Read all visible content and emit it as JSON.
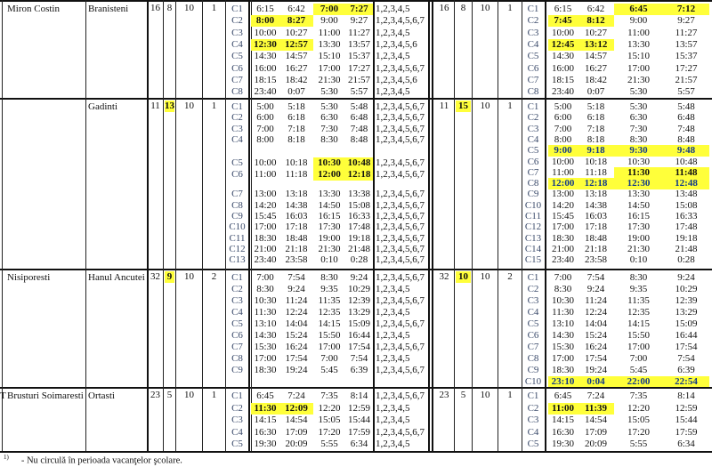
{
  "highlight_color": "#ffff3a",
  "sections": [
    {
      "lead": "",
      "from": "Miron Costin",
      "to": "Branisteni",
      "left": {
        "nums": [
          "16",
          "8",
          "10",
          "1"
        ],
        "num_highlight": [],
        "rows": [
          {
            "c": "C1",
            "t": [
              "6:15",
              "6:42",
              "7:00",
              "7:27"
            ],
            "days": "1,2,3,4,5",
            "hl": [
              2,
              3
            ]
          },
          {
            "c": "C2",
            "t": [
              "8:00",
              "8:27",
              "9:00",
              "9:27"
            ],
            "days": "1,2,3,4,5,6,7",
            "hl": [
              0,
              1
            ]
          },
          {
            "c": "C3",
            "t": [
              "10:00",
              "10:27",
              "11:00",
              "11:27"
            ],
            "days": "1,2,3,4,5",
            "hl": []
          },
          {
            "c": "C4",
            "t": [
              "12:30",
              "12:57",
              "13:30",
              "13:57"
            ],
            "days": "1,2,3,4,5,6",
            "hl": [
              0,
              1
            ]
          },
          {
            "c": "C5",
            "t": [
              "14:30",
              "14:57",
              "15:10",
              "15:37"
            ],
            "days": "1,2,3,4,5",
            "hl": []
          },
          {
            "c": "C6",
            "t": [
              "16:00",
              "16:27",
              "17:00",
              "17:27"
            ],
            "days": "1,2,3,4,5,6,7",
            "hl": []
          },
          {
            "c": "C7",
            "t": [
              "18:15",
              "18:42",
              "21:30",
              "21:57"
            ],
            "days": "1,2,3,4,5,6",
            "hl": []
          },
          {
            "c": "C8",
            "t": [
              "23:40",
              "0:07",
              "5:30",
              "5:57"
            ],
            "days": "1,2,3,4,5",
            "hl": []
          }
        ]
      },
      "right": {
        "nums": [
          "16",
          "8",
          "10",
          "1"
        ],
        "num_highlight": [],
        "rows": [
          {
            "c": "C1",
            "t": [
              "6:15",
              "6:42",
              "6:45",
              "7:12"
            ],
            "hl": [
              2,
              3
            ]
          },
          {
            "c": "C2",
            "t": [
              "7:45",
              "8:12",
              "9:00",
              "9:27"
            ],
            "hl": [
              0,
              1
            ]
          },
          {
            "c": "C3",
            "t": [
              "10:00",
              "10:27",
              "11:00",
              "11:27"
            ],
            "hl": []
          },
          {
            "c": "C4",
            "t": [
              "12:45",
              "13:12",
              "13:30",
              "13:57"
            ],
            "hl": [
              0,
              1
            ]
          },
          {
            "c": "C5",
            "t": [
              "14:30",
              "14:57",
              "15:10",
              "15:37"
            ],
            "hl": []
          },
          {
            "c": "C6",
            "t": [
              "16:00",
              "16:27",
              "17:00",
              "17:27"
            ],
            "hl": []
          },
          {
            "c": "C7",
            "t": [
              "18:15",
              "18:42",
              "21:30",
              "21:57"
            ],
            "hl": []
          },
          {
            "c": "C8",
            "t": [
              "23:40",
              "0:07",
              "5:30",
              "5:57"
            ],
            "hl": []
          }
        ]
      }
    },
    {
      "lead": "",
      "from": "",
      "to": "Gadinti",
      "left": {
        "nums": [
          "11",
          "13",
          "10",
          "1"
        ],
        "num_highlight": [
          1
        ],
        "rows": [
          {
            "c": "C1",
            "t": [
              "5:00",
              "5:18",
              "5:30",
              "5:48"
            ],
            "days": "1,2,3,4,5,6,7",
            "hl": []
          },
          {
            "c": "C2",
            "t": [
              "6:00",
              "6:18",
              "6:30",
              "6:48"
            ],
            "days": "1,2,3,4,5,6,7",
            "hl": []
          },
          {
            "c": "C3",
            "t": [
              "7:00",
              "7:18",
              "7:30",
              "7:48"
            ],
            "days": "1,2,3,4,5,6,7",
            "hl": []
          },
          {
            "c": "C4",
            "t": [
              "8:00",
              "8:18",
              "8:30",
              "8:48"
            ],
            "days": "1,2,3,4,5,6,7",
            "hl": []
          },
          {
            "c": "C5",
            "t": [
              "10:00",
              "10:18",
              "10:30",
              "10:48"
            ],
            "days": "1,2,3,4,5,6,7",
            "hl": [
              2,
              3
            ]
          },
          {
            "c": "C6",
            "t": [
              "11:00",
              "11:18",
              "12:00",
              "12:18"
            ],
            "days": "1,2,3,4,5,6,7",
            "hl": [
              2,
              3
            ]
          },
          {
            "c": "C7",
            "t": [
              "13:00",
              "13:18",
              "13:30",
              "13:38"
            ],
            "days": "1,2,3,4,5,6,7",
            "hl": []
          },
          {
            "c": "C8",
            "t": [
              "14:20",
              "14:38",
              "14:50",
              "15:08"
            ],
            "days": "1,2,3,4,5,6,7",
            "hl": []
          },
          {
            "c": "C9",
            "t": [
              "15:45",
              "16:03",
              "16:15",
              "16:33"
            ],
            "days": "1,2,3,4,5,6,7",
            "hl": []
          },
          {
            "c": "C10",
            "t": [
              "17:00",
              "17:18",
              "17:30",
              "17:48"
            ],
            "days": "1,2,3,4,5,6,7",
            "hl": []
          },
          {
            "c": "C11",
            "t": [
              "18:30",
              "18:48",
              "19:00",
              "19:18"
            ],
            "days": "1,2,3,4,5,6,7",
            "hl": []
          },
          {
            "c": "C12",
            "t": [
              "21:00",
              "21:18",
              "21:30",
              "21:48"
            ],
            "days": "1,2,3,4,5,6,7",
            "hl": []
          },
          {
            "c": "C13",
            "t": [
              "23:40",
              "23:58",
              "0:10",
              "0:28"
            ],
            "days": "1,2,3,4,5,6,7",
            "hl": []
          }
        ]
      },
      "right": {
        "nums": [
          "11",
          "15",
          "10",
          "1"
        ],
        "num_highlight": [
          1
        ],
        "rows": [
          {
            "c": "C1",
            "t": [
              "5:00",
              "5:18",
              "5:30",
              "5:48"
            ],
            "hl": []
          },
          {
            "c": "C2",
            "t": [
              "6:00",
              "6:18",
              "6:30",
              "6:48"
            ],
            "hl": []
          },
          {
            "c": "C3",
            "t": [
              "7:00",
              "7:18",
              "7:30",
              "7:48"
            ],
            "hl": []
          },
          {
            "c": "C4",
            "t": [
              "8:00",
              "8:18",
              "8:30",
              "8:48"
            ],
            "hl": []
          },
          {
            "c": "C5",
            "t": [
              "9:00",
              "9:18",
              "9:30",
              "9:48"
            ],
            "hl": [
              0,
              1,
              2,
              3
            ],
            "blue": true
          },
          {
            "c": "C6",
            "t": [
              "10:00",
              "10:18",
              "10:30",
              "10:48"
            ],
            "hl": []
          },
          {
            "c": "C7",
            "t": [
              "11:00",
              "11:18",
              "11:30",
              "11:48"
            ],
            "hl": [
              2,
              3
            ]
          },
          {
            "c": "C8",
            "t": [
              "12:00",
              "12:18",
              "12:30",
              "12:48"
            ],
            "hl": [
              0,
              1,
              2,
              3
            ],
            "blue": true
          },
          {
            "c": "C9",
            "t": [
              "13:00",
              "13:18",
              "13:30",
              "13:48"
            ],
            "hl": []
          },
          {
            "c": "C10",
            "t": [
              "14:20",
              "14:38",
              "14:50",
              "15:08"
            ],
            "hl": []
          },
          {
            "c": "C11",
            "t": [
              "15:45",
              "16:03",
              "16:15",
              "16:33"
            ],
            "hl": []
          },
          {
            "c": "C12",
            "t": [
              "17:00",
              "17:18",
              "17:30",
              "17:48"
            ],
            "hl": []
          },
          {
            "c": "C13",
            "t": [
              "18:30",
              "18:48",
              "19:00",
              "19:18"
            ],
            "hl": []
          },
          {
            "c": "C14",
            "t": [
              "21:00",
              "21:18",
              "21:30",
              "21:48"
            ],
            "hl": []
          },
          {
            "c": "C15",
            "t": [
              "23:40",
              "23:58",
              "0:10",
              "0:28"
            ],
            "hl": []
          }
        ]
      }
    },
    {
      "lead": "",
      "from": "Nisiporesti",
      "to": "Hanul Ancutei",
      "left": {
        "nums": [
          "32",
          "9",
          "10",
          "2"
        ],
        "num_highlight": [
          1
        ],
        "rows": [
          {
            "c": "C1",
            "t": [
              "7:00",
              "7:54",
              "8:30",
              "9:24"
            ],
            "days": "1,2,3,4,5,6,7",
            "hl": []
          },
          {
            "c": "C2",
            "t": [
              "8:30",
              "9:24",
              "9:35",
              "10:29"
            ],
            "days": "1,2,3,4,5",
            "hl": []
          },
          {
            "c": "C3",
            "t": [
              "10:30",
              "11:24",
              "11:35",
              "12:39"
            ],
            "days": "1,2,3,4,5,6,7",
            "hl": []
          },
          {
            "c": "C4",
            "t": [
              "11:30",
              "12:24",
              "12:35",
              "13:29"
            ],
            "days": "1,2,3,4,5",
            "hl": []
          },
          {
            "c": "C5",
            "t": [
              "13:10",
              "14:04",
              "14:15",
              "15:09"
            ],
            "days": "1,2,3,4,5,6,7",
            "hl": []
          },
          {
            "c": "C6",
            "t": [
              "14:30",
              "15:24",
              "15:50",
              "16:44"
            ],
            "days": "1,2,3,4,5",
            "hl": []
          },
          {
            "c": "C7",
            "t": [
              "15:30",
              "16:24",
              "17:00",
              "17:54"
            ],
            "days": "1,2,3,4,5,6,7",
            "hl": []
          },
          {
            "c": "C8",
            "t": [
              "17:00",
              "17:54",
              "7:00",
              "7:54"
            ],
            "days": "1,2,3,4,5",
            "hl": []
          },
          {
            "c": "C9",
            "t": [
              "18:30",
              "19:24",
              "5:45",
              "6:39"
            ],
            "days": "1,2,3,4,5,6,7",
            "hl": []
          }
        ]
      },
      "right": {
        "nums": [
          "32",
          "10",
          "10",
          "2"
        ],
        "num_highlight": [
          1
        ],
        "rows": [
          {
            "c": "C1",
            "t": [
              "7:00",
              "7:54",
              "8:30",
              "9:24"
            ],
            "hl": []
          },
          {
            "c": "C2",
            "t": [
              "8:30",
              "9:24",
              "9:35",
              "10:29"
            ],
            "hl": []
          },
          {
            "c": "C3",
            "t": [
              "10:30",
              "11:24",
              "11:35",
              "12:39"
            ],
            "hl": []
          },
          {
            "c": "C4",
            "t": [
              "11:30",
              "12:24",
              "12:35",
              "13:29"
            ],
            "hl": []
          },
          {
            "c": "C5",
            "t": [
              "13:10",
              "14:04",
              "14:15",
              "15:09"
            ],
            "hl": []
          },
          {
            "c": "C6",
            "t": [
              "14:30",
              "15:24",
              "15:50",
              "16:44"
            ],
            "hl": []
          },
          {
            "c": "C7",
            "t": [
              "15:30",
              "16:24",
              "17:00",
              "17:54"
            ],
            "hl": []
          },
          {
            "c": "C8",
            "t": [
              "17:00",
              "17:54",
              "7:00",
              "7:54"
            ],
            "hl": []
          },
          {
            "c": "C9",
            "t": [
              "18:30",
              "19:24",
              "5:45",
              "6:39"
            ],
            "hl": []
          },
          {
            "c": "C10",
            "t": [
              "23:10",
              "0:04",
              "22:00",
              "22:54"
            ],
            "hl": [
              0,
              1,
              2,
              3
            ],
            "blue": true
          }
        ]
      }
    },
    {
      "lead": "T",
      "from": "Brusturi Soimaresti",
      "to": "Ortasti",
      "left": {
        "nums": [
          "23",
          "5",
          "10",
          "1"
        ],
        "num_highlight": [],
        "rows": [
          {
            "c": "C1",
            "t": [
              "6:45",
              "7:24",
              "7:35",
              "8:14"
            ],
            "days": "1,2,3,4,5,6,7",
            "hl": []
          },
          {
            "c": "C2",
            "t": [
              "11:30",
              "12:09",
              "12:20",
              "12:59"
            ],
            "days": "1,2,3,4,5",
            "hl": [
              0,
              1
            ]
          },
          {
            "c": "C3",
            "t": [
              "14:15",
              "14:54",
              "15:05",
              "15:44"
            ],
            "days": "1,2,3,4,5",
            "hl": []
          },
          {
            "c": "C4",
            "t": [
              "16:30",
              "17:09",
              "17:20",
              "17:59"
            ],
            "days": "1,2,3,4,5,6,7",
            "hl": []
          },
          {
            "c": "C5",
            "t": [
              "19:30",
              "20:09",
              "5:55",
              "6:34"
            ],
            "days": "1,2,3,4,5",
            "hl": []
          }
        ]
      },
      "right": {
        "nums": [
          "23",
          "5",
          "10",
          "1"
        ],
        "num_highlight": [],
        "rows": [
          {
            "c": "C1",
            "t": [
              "6:45",
              "7:24",
              "7:35",
              "8:14"
            ],
            "hl": []
          },
          {
            "c": "C2",
            "t": [
              "11:00",
              "11:39",
              "12:20",
              "12:59"
            ],
            "hl": [
              0,
              1
            ]
          },
          {
            "c": "C3",
            "t": [
              "14:15",
              "14:54",
              "15:05",
              "15:44"
            ],
            "hl": []
          },
          {
            "c": "C4",
            "t": [
              "16:30",
              "17:09",
              "17:20",
              "17:59"
            ],
            "hl": []
          },
          {
            "c": "C5",
            "t": [
              "19:30",
              "20:09",
              "5:55",
              "6:34"
            ],
            "hl": []
          }
        ]
      }
    }
  ],
  "footnote": {
    "mark": "1)",
    "text": "- Nu circulă în perioada vacanţelor şcolare."
  }
}
